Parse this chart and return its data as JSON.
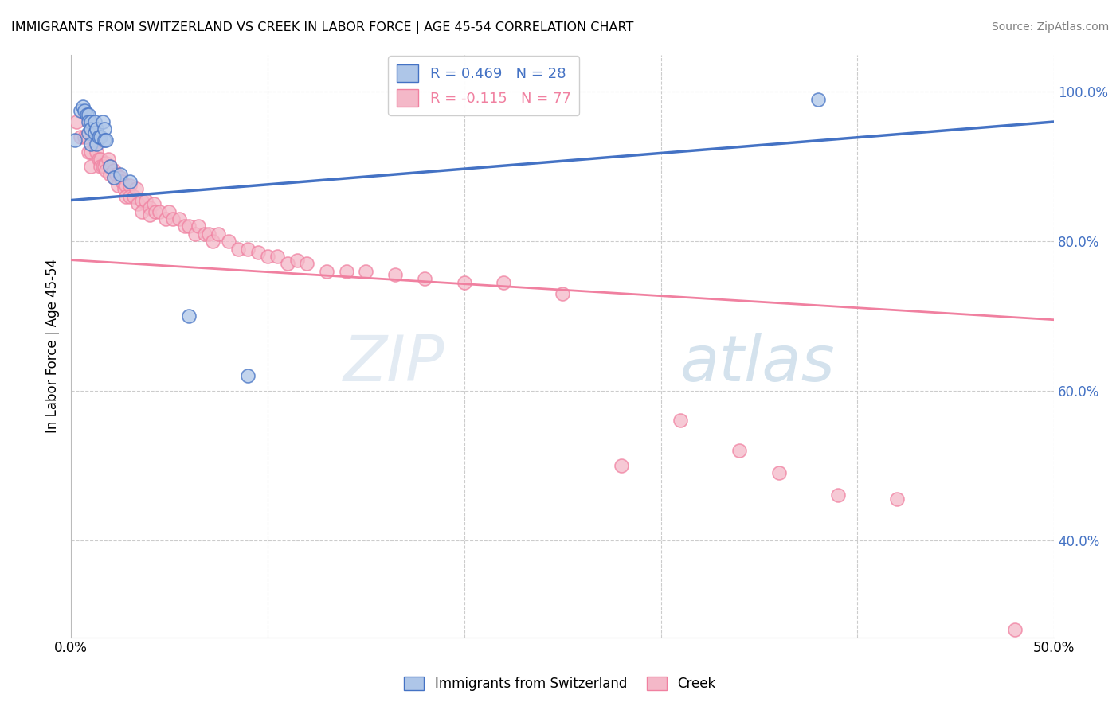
{
  "title": "IMMIGRANTS FROM SWITZERLAND VS CREEK IN LABOR FORCE | AGE 45-54 CORRELATION CHART",
  "source": "Source: ZipAtlas.com",
  "ylabel": "In Labor Force | Age 45-54",
  "xlim": [
    0.0,
    0.5
  ],
  "ylim": [
    0.27,
    1.05
  ],
  "xticks": [
    0.0,
    0.1,
    0.2,
    0.3,
    0.4,
    0.5
  ],
  "xtick_labels": [
    "0.0%",
    "",
    "",
    "",
    "",
    "50.0%"
  ],
  "yticks": [
    0.4,
    0.6,
    0.8,
    1.0
  ],
  "ytick_labels": [
    "40.0%",
    "60.0%",
    "80.0%",
    "100.0%"
  ],
  "background_color": "#ffffff",
  "grid_color": "#cccccc",
  "swiss_color": "#aec6e8",
  "creek_color": "#f4b8c8",
  "swiss_line_color": "#4472c4",
  "creek_line_color": "#f080a0",
  "swiss_R": 0.469,
  "swiss_N": 28,
  "creek_R": -0.115,
  "creek_N": 77,
  "legend_label_swiss": "Immigrants from Switzerland",
  "legend_label_creek": "Creek",
  "swiss_x": [
    0.002,
    0.005,
    0.006,
    0.007,
    0.008,
    0.009,
    0.009,
    0.009,
    0.01,
    0.01,
    0.01,
    0.012,
    0.012,
    0.013,
    0.013,
    0.014,
    0.015,
    0.016,
    0.017,
    0.017,
    0.018,
    0.02,
    0.022,
    0.025,
    0.03,
    0.06,
    0.09,
    0.38
  ],
  "swiss_y": [
    0.935,
    0.975,
    0.98,
    0.975,
    0.97,
    0.97,
    0.96,
    0.945,
    0.96,
    0.95,
    0.93,
    0.96,
    0.945,
    0.95,
    0.93,
    0.94,
    0.94,
    0.96,
    0.95,
    0.935,
    0.935,
    0.9,
    0.885,
    0.89,
    0.88,
    0.7,
    0.62,
    0.99
  ],
  "creek_x": [
    0.003,
    0.005,
    0.007,
    0.008,
    0.009,
    0.01,
    0.01,
    0.012,
    0.013,
    0.014,
    0.015,
    0.015,
    0.016,
    0.017,
    0.018,
    0.018,
    0.019,
    0.02,
    0.02,
    0.022,
    0.022,
    0.023,
    0.024,
    0.025,
    0.026,
    0.027,
    0.028,
    0.028,
    0.03,
    0.03,
    0.032,
    0.033,
    0.034,
    0.036,
    0.036,
    0.038,
    0.04,
    0.04,
    0.042,
    0.043,
    0.045,
    0.048,
    0.05,
    0.052,
    0.055,
    0.058,
    0.06,
    0.063,
    0.065,
    0.068,
    0.07,
    0.072,
    0.075,
    0.08,
    0.085,
    0.09,
    0.095,
    0.1,
    0.105,
    0.11,
    0.115,
    0.12,
    0.13,
    0.14,
    0.15,
    0.165,
    0.18,
    0.2,
    0.22,
    0.25,
    0.28,
    0.31,
    0.34,
    0.36,
    0.39,
    0.42,
    0.48
  ],
  "creek_y": [
    0.96,
    0.94,
    0.94,
    0.94,
    0.92,
    0.92,
    0.9,
    0.93,
    0.92,
    0.91,
    0.91,
    0.9,
    0.9,
    0.9,
    0.905,
    0.895,
    0.91,
    0.9,
    0.89,
    0.895,
    0.885,
    0.89,
    0.875,
    0.885,
    0.88,
    0.87,
    0.875,
    0.86,
    0.875,
    0.86,
    0.86,
    0.87,
    0.85,
    0.855,
    0.84,
    0.855,
    0.845,
    0.835,
    0.85,
    0.84,
    0.84,
    0.83,
    0.84,
    0.83,
    0.83,
    0.82,
    0.82,
    0.81,
    0.82,
    0.81,
    0.81,
    0.8,
    0.81,
    0.8,
    0.79,
    0.79,
    0.785,
    0.78,
    0.78,
    0.77,
    0.775,
    0.77,
    0.76,
    0.76,
    0.76,
    0.755,
    0.75,
    0.745,
    0.745,
    0.73,
    0.5,
    0.56,
    0.52,
    0.49,
    0.46,
    0.455,
    0.28
  ]
}
